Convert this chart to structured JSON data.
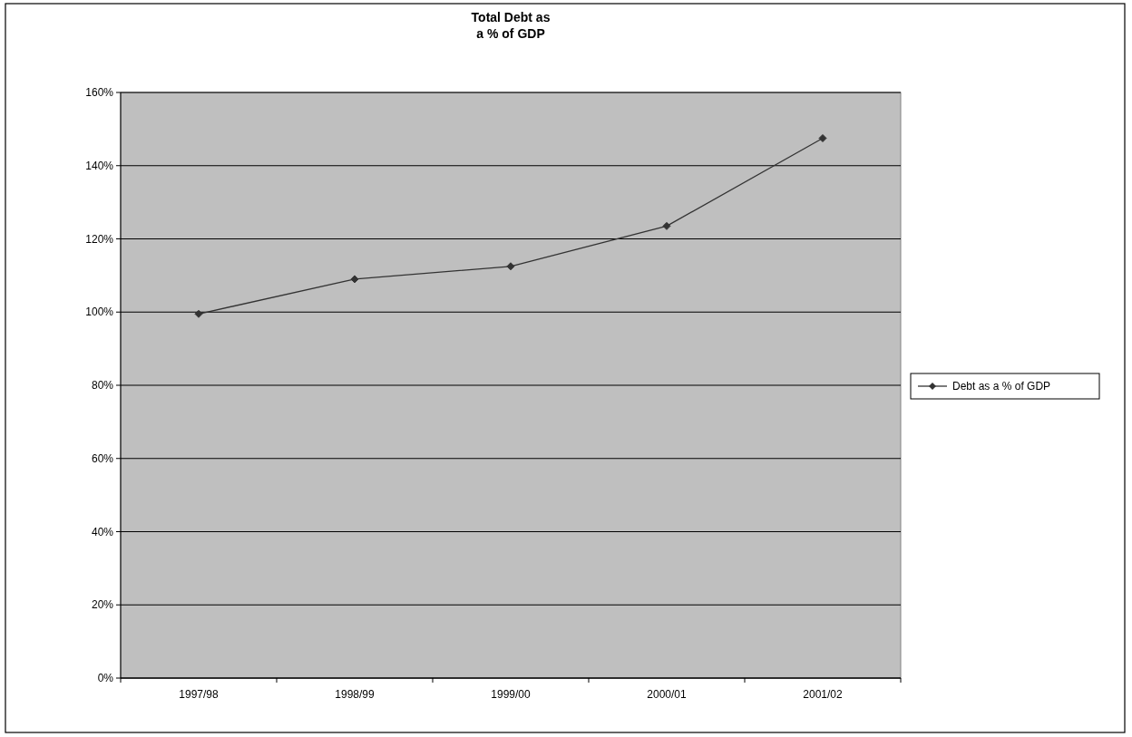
{
  "chart_data": {
    "type": "line",
    "title": "Total Debt as\na % of GDP",
    "categories": [
      "1997/98",
      "1998/99",
      "1999/00",
      "2000/01",
      "2001/02"
    ],
    "series": [
      {
        "name": "Debt as a % of GDP",
        "color": "#333333",
        "values": [
          99.5,
          109,
          112.5,
          123.5,
          147.5
        ]
      }
    ],
    "ylim": [
      0,
      160
    ],
    "yticks": [
      {
        "value": 0,
        "label": "0%"
      },
      {
        "value": 20,
        "label": "20%"
      },
      {
        "value": 40,
        "label": "40%"
      },
      {
        "value": 60,
        "label": "60%"
      },
      {
        "value": 80,
        "label": "80%"
      },
      {
        "value": 100,
        "label": "100%"
      },
      {
        "value": 120,
        "label": "120%"
      },
      {
        "value": 140,
        "label": "140%"
      },
      {
        "value": 160,
        "label": "160%"
      }
    ],
    "grid": "y",
    "legend": "right",
    "marker": "diamond",
    "line_style": "solid"
  }
}
